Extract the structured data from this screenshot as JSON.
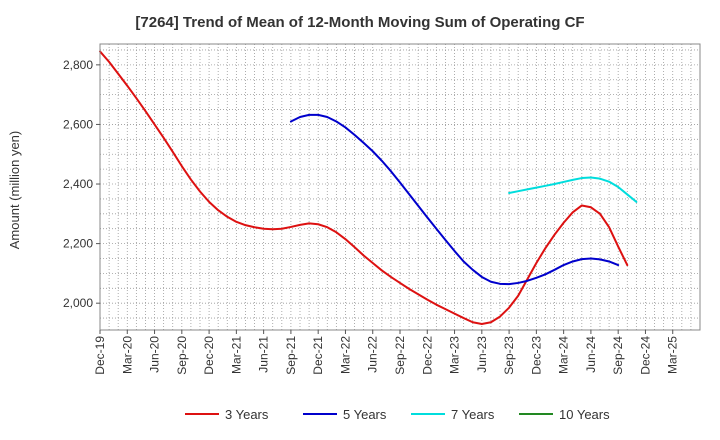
{
  "chart_data": {
    "type": "line",
    "title": "[7264]  Trend of Mean of 12-Month Moving Sum of Operating CF",
    "xlabel": "",
    "ylabel": "Amount (million yen)",
    "ylim": [
      1910,
      2870
    ],
    "yticks": [
      2000,
      2200,
      2400,
      2600,
      2800
    ],
    "ytick_labels": [
      "2,000",
      "2,200",
      "2,400",
      "2,600",
      "2,800"
    ],
    "x_tick_labels": [
      "Dec-19",
      "Mar-20",
      "Jun-20",
      "Sep-20",
      "Dec-20",
      "Mar-21",
      "Jun-21",
      "Sep-21",
      "Dec-21",
      "Mar-22",
      "Jun-22",
      "Sep-22",
      "Dec-22",
      "Mar-23",
      "Jun-23",
      "Sep-23",
      "Dec-23",
      "Mar-24",
      "Jun-24",
      "Sep-24",
      "Dec-24",
      "Mar-25"
    ],
    "x_start_label": "Dec-19",
    "x_months_span": 66,
    "grid": true,
    "legend_position": "bottom",
    "series": [
      {
        "name": "3 Years",
        "color": "#dd1111",
        "start_month": 0,
        "values": [
          2845,
          2810,
          2770,
          2730,
          2688,
          2645,
          2600,
          2555,
          2508,
          2460,
          2415,
          2375,
          2340,
          2312,
          2290,
          2273,
          2262,
          2255,
          2250,
          2248,
          2250,
          2256,
          2263,
          2268,
          2265,
          2255,
          2238,
          2215,
          2188,
          2160,
          2135,
          2110,
          2088,
          2068,
          2048,
          2030,
          2012,
          1995,
          1980,
          1965,
          1950,
          1936,
          1930,
          1936,
          1955,
          1985,
          2025,
          2080,
          2135,
          2185,
          2230,
          2270,
          2305,
          2328,
          2322,
          2300,
          2255,
          2190,
          2128
        ]
      },
      {
        "name": "5 Years",
        "color": "#0000cc",
        "start_month": 21,
        "values": [
          2610,
          2625,
          2632,
          2632,
          2625,
          2610,
          2590,
          2565,
          2538,
          2510,
          2478,
          2443,
          2405,
          2366,
          2327,
          2288,
          2250,
          2212,
          2175,
          2140,
          2112,
          2088,
          2072,
          2065,
          2064,
          2068,
          2075,
          2085,
          2097,
          2112,
          2128,
          2140,
          2148,
          2150,
          2147,
          2140,
          2128
        ]
      },
      {
        "name": "7 Years",
        "color": "#00dddd",
        "start_month": 45,
        "values": [
          2370,
          2376,
          2382,
          2388,
          2394,
          2400,
          2407,
          2414,
          2420,
          2422,
          2418,
          2408,
          2390,
          2365,
          2340
        ]
      },
      {
        "name": "10 Years",
        "color": "#228822",
        "start_month": 0,
        "values": []
      }
    ]
  }
}
